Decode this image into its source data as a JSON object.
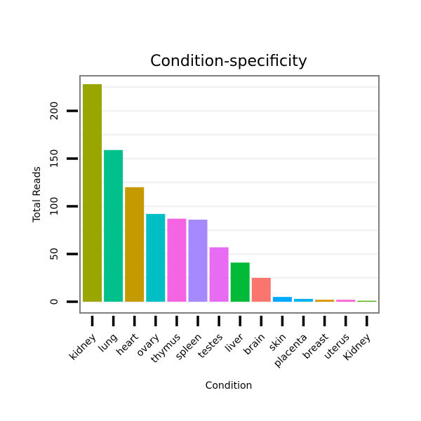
{
  "chart_data": {
    "type": "bar",
    "title": "Condition-specificity",
    "xlabel": "Condition",
    "ylabel": "Total Reads",
    "categories": [
      "kidney",
      "lung",
      "heart",
      "ovary",
      "thymus",
      "spleen",
      "testes",
      "liver",
      "brain",
      "skin",
      "placenta",
      "breast",
      "uterus",
      "Kidney"
    ],
    "values": [
      228,
      159,
      120,
      92,
      87,
      86,
      57,
      41,
      25,
      5,
      3,
      2,
      2,
      1
    ],
    "colors": [
      "#9aa600",
      "#00c08b",
      "#c49a00",
      "#00bfc4",
      "#f564e3",
      "#a58aff",
      "#e76bf3",
      "#00ba38",
      "#f8766d",
      "#00a9ff",
      "#00b4f0",
      "#d89000",
      "#fd61d1",
      "#53b400"
    ],
    "yticks": [
      0,
      50,
      100,
      150,
      200
    ],
    "ylim": [
      -8,
      240
    ],
    "grid": true,
    "legend": "none"
  }
}
